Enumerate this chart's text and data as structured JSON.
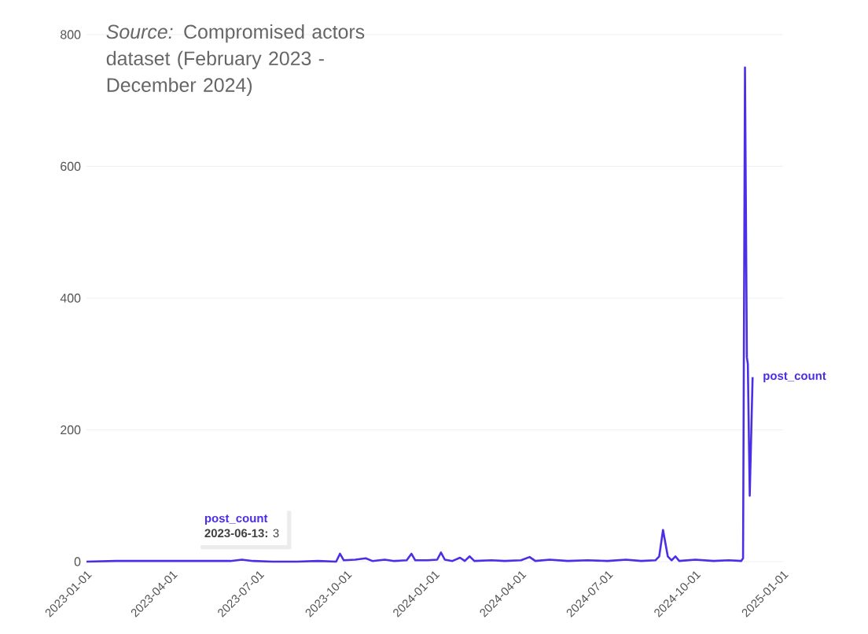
{
  "chart_data": {
    "type": "line",
    "annotations": [
      "*Source:* Compromised actors dataset (February 2023 - December 2024)",
      {
        "text": "**2023-06-13:** 3",
        "x": "2023-06-13",
        "y": 3
      }
    ],
    "x": [
      "2023-01-01",
      "2023-02-01",
      "2023-03-01",
      "2023-04-01",
      "2023-05-01",
      "2023-06-01",
      "2023-06-13",
      "2023-06-25",
      "2023-07-15",
      "2023-08-10",
      "2023-09-01",
      "2023-09-20",
      "2023-09-24",
      "2023-09-28",
      "2023-10-10",
      "2023-10-21",
      "2023-10-28",
      "2023-11-10",
      "2023-11-20",
      "2023-12-03",
      "2023-12-08",
      "2023-12-12",
      "2023-12-25",
      "2024-01-04",
      "2024-01-08",
      "2024-01-12",
      "2024-01-20",
      "2024-01-28",
      "2024-02-02",
      "2024-02-07",
      "2024-02-12",
      "2024-03-01",
      "2024-03-15",
      "2024-04-01",
      "2024-04-10",
      "2024-04-16",
      "2024-05-01",
      "2024-05-20",
      "2024-06-10",
      "2024-07-01",
      "2024-07-20",
      "2024-08-05",
      "2024-08-20",
      "2024-08-24",
      "2024-08-28",
      "2024-09-02",
      "2024-09-06",
      "2024-09-10",
      "2024-09-14",
      "2024-10-01",
      "2024-10-20",
      "2024-11-05",
      "2024-11-18",
      "2024-11-20",
      "2024-11-22",
      "2024-11-24",
      "2024-11-25",
      "2024-11-27",
      "2024-11-30"
    ],
    "series": [
      {
        "name": "post_count",
        "color": "#4a2fe6",
        "values": [
          0,
          1,
          1,
          1,
          1,
          1,
          3,
          1,
          0,
          0,
          1,
          0,
          12,
          2,
          3,
          5,
          1,
          3,
          1,
          2,
          12,
          2,
          2,
          3,
          14,
          3,
          1,
          6,
          1,
          8,
          1,
          2,
          1,
          2,
          7,
          1,
          3,
          1,
          2,
          1,
          3,
          1,
          2,
          8,
          48,
          8,
          2,
          8,
          1,
          3,
          1,
          2,
          1,
          5,
          750,
          310,
          300,
          100,
          280
        ]
      }
    ],
    "xlim": [
      "2023-01-01",
      "2025-01-01"
    ],
    "xticks": [
      "2023-01-01",
      "2023-04-01",
      "2023-07-01",
      "2023-10-01",
      "2024-01-01",
      "2024-04-01",
      "2024-07-01",
      "2024-10-01",
      "2025-01-01"
    ],
    "ylim": [
      0,
      800
    ],
    "yticks": [
      0,
      200,
      400,
      600,
      800
    ],
    "grid": "y",
    "legend": false,
    "marker": "none",
    "line_style": "solid"
  }
}
